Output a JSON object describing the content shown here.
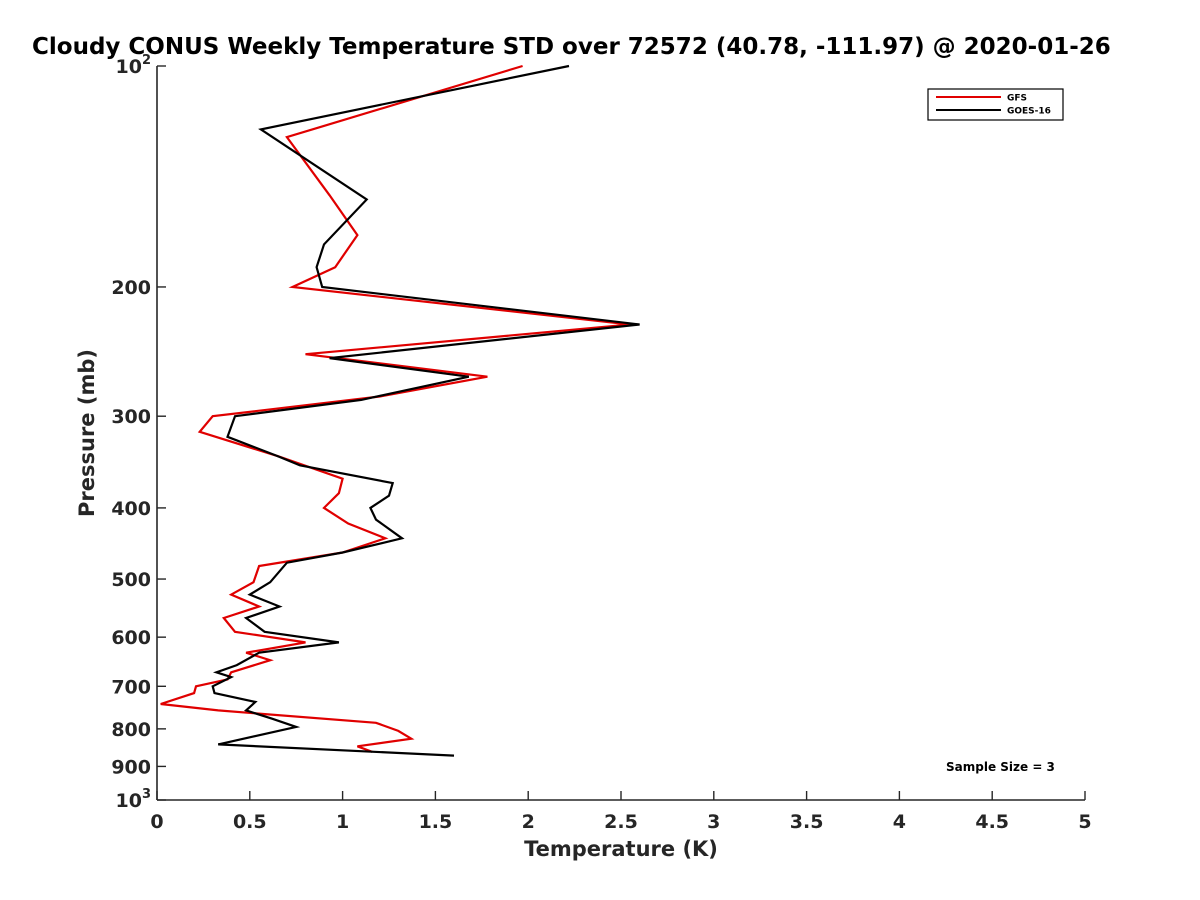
{
  "chart_data": {
    "type": "line",
    "title": "Cloudy CONUS Weekly Temperature STD over 72572 (40.78, -111.97) @ 2020-01-26",
    "xlabel": "Temperature (K)",
    "ylabel": "Pressure (mb)",
    "xlim": [
      0,
      5
    ],
    "ylim": [
      100,
      1000
    ],
    "y_scale": "log",
    "y_reversed": true,
    "x_ticks": [
      0,
      0.5,
      1,
      1.5,
      2,
      2.5,
      3,
      3.5,
      4,
      4.5,
      5
    ],
    "x_tick_labels": [
      "0",
      "0.5",
      "1",
      "1.5",
      "2",
      "2.5",
      "3",
      "3.5",
      "4",
      "4.5",
      "5"
    ],
    "y_ticks": [
      100,
      200,
      300,
      400,
      500,
      600,
      700,
      800,
      900,
      1000
    ],
    "y_tick_labels": [
      {
        "base": "10",
        "exp": "2"
      },
      {
        "base": "200",
        "exp": ""
      },
      {
        "base": "300",
        "exp": ""
      },
      {
        "base": "400",
        "exp": ""
      },
      {
        "base": "500",
        "exp": ""
      },
      {
        "base": "600",
        "exp": ""
      },
      {
        "base": "700",
        "exp": ""
      },
      {
        "base": "800",
        "exp": ""
      },
      {
        "base": "900",
        "exp": ""
      },
      {
        "base": "10",
        "exp": "3"
      }
    ],
    "grid": false,
    "legend_position": "top-right",
    "series": [
      {
        "name": "GFS",
        "color": "#e00000",
        "points": [
          [
            1.97,
            100
          ],
          [
            0.7,
            125
          ],
          [
            0.93,
            150
          ],
          [
            1.08,
            170
          ],
          [
            0.96,
            188
          ],
          [
            0.73,
            200
          ],
          [
            2.55,
            225
          ],
          [
            0.8,
            247
          ],
          [
            1.78,
            265
          ],
          [
            1.2,
            282
          ],
          [
            0.3,
            300
          ],
          [
            0.23,
            315
          ],
          [
            0.65,
            340
          ],
          [
            1.0,
            365
          ],
          [
            0.98,
            382
          ],
          [
            0.9,
            400
          ],
          [
            1.03,
            420
          ],
          [
            1.23,
            440
          ],
          [
            1.0,
            460
          ],
          [
            0.55,
            480
          ],
          [
            0.52,
            505
          ],
          [
            0.4,
            525
          ],
          [
            0.55,
            545
          ],
          [
            0.36,
            565
          ],
          [
            0.42,
            590
          ],
          [
            0.8,
            610
          ],
          [
            0.48,
            630
          ],
          [
            0.61,
            645
          ],
          [
            0.4,
            670
          ],
          [
            0.38,
            685
          ],
          [
            0.21,
            700
          ],
          [
            0.2,
            715
          ],
          [
            0.02,
            740
          ],
          [
            0.33,
            755
          ],
          [
            1.18,
            785
          ],
          [
            1.3,
            805
          ],
          [
            1.37,
            825
          ],
          [
            1.08,
            845
          ],
          [
            1.16,
            860
          ]
        ]
      },
      {
        "name": "GOES-16",
        "color": "#000000",
        "points": [
          [
            2.22,
            100
          ],
          [
            0.56,
            122
          ],
          [
            1.13,
            152
          ],
          [
            0.9,
            175
          ],
          [
            0.86,
            188
          ],
          [
            0.89,
            200
          ],
          [
            2.6,
            225
          ],
          [
            0.93,
            250
          ],
          [
            1.68,
            265
          ],
          [
            1.1,
            285
          ],
          [
            0.42,
            300
          ],
          [
            0.38,
            320
          ],
          [
            0.65,
            340
          ],
          [
            0.77,
            350
          ],
          [
            1.27,
            370
          ],
          [
            1.25,
            385
          ],
          [
            1.15,
            400
          ],
          [
            1.18,
            415
          ],
          [
            1.32,
            440
          ],
          [
            1.0,
            460
          ],
          [
            0.7,
            475
          ],
          [
            0.61,
            505
          ],
          [
            0.5,
            525
          ],
          [
            0.66,
            545
          ],
          [
            0.48,
            565
          ],
          [
            0.58,
            590
          ],
          [
            0.98,
            610
          ],
          [
            0.55,
            630
          ],
          [
            0.43,
            655
          ],
          [
            0.32,
            670
          ],
          [
            0.4,
            680
          ],
          [
            0.3,
            700
          ],
          [
            0.31,
            715
          ],
          [
            0.53,
            735
          ],
          [
            0.48,
            755
          ],
          [
            0.62,
            775
          ],
          [
            0.75,
            795
          ],
          [
            0.33,
            840
          ],
          [
            1.6,
            870
          ]
        ]
      }
    ],
    "annotation": "Sample Size = 3"
  }
}
